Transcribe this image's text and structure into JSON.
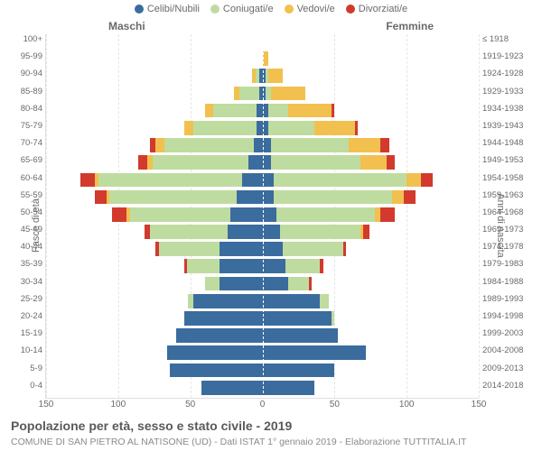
{
  "legend": {
    "items": [
      {
        "label": "Celibi/Nubili",
        "color": "#3b6c9e"
      },
      {
        "label": "Coniugati/e",
        "color": "#bfdca0"
      },
      {
        "label": "Vedovi/e",
        "color": "#f2c04e"
      },
      {
        "label": "Divorziati/e",
        "color": "#d23a2e"
      }
    ]
  },
  "labels": {
    "male": "Maschi",
    "female": "Femmine",
    "y_left": "Fasce di età",
    "y_right": "Anni di nascita"
  },
  "xaxis": {
    "max": 150,
    "ticks": [
      150,
      100,
      50,
      0,
      50,
      100,
      150
    ]
  },
  "colors": {
    "celibi": "#3b6c9e",
    "coniugati": "#bfdca0",
    "vedovi": "#f2c04e",
    "divorziati": "#d23a2e",
    "grid": "#e6e6e6",
    "background": "#ffffff"
  },
  "rows": [
    {
      "age": "100+",
      "birth": "≤ 1918",
      "m": {
        "c": 0,
        "co": 0,
        "v": 0,
        "d": 0
      },
      "f": {
        "c": 0,
        "co": 0,
        "v": 0,
        "d": 0
      }
    },
    {
      "age": "95-99",
      "birth": "1919-1923",
      "m": {
        "c": 0,
        "co": 0,
        "v": 0,
        "d": 0
      },
      "f": {
        "c": 0,
        "co": 0,
        "v": 4,
        "d": 0
      }
    },
    {
      "age": "90-94",
      "birth": "1924-1928",
      "m": {
        "c": 2,
        "co": 3,
        "v": 2,
        "d": 0
      },
      "f": {
        "c": 2,
        "co": 2,
        "v": 10,
        "d": 0
      }
    },
    {
      "age": "85-89",
      "birth": "1929-1933",
      "m": {
        "c": 2,
        "co": 14,
        "v": 4,
        "d": 0
      },
      "f": {
        "c": 2,
        "co": 4,
        "v": 24,
        "d": 0
      }
    },
    {
      "age": "80-84",
      "birth": "1934-1938",
      "m": {
        "c": 4,
        "co": 30,
        "v": 6,
        "d": 0
      },
      "f": {
        "c": 4,
        "co": 14,
        "v": 30,
        "d": 2
      }
    },
    {
      "age": "75-79",
      "birth": "1939-1943",
      "m": {
        "c": 4,
        "co": 44,
        "v": 6,
        "d": 0
      },
      "f": {
        "c": 4,
        "co": 32,
        "v": 28,
        "d": 2
      }
    },
    {
      "age": "70-74",
      "birth": "1944-1948",
      "m": {
        "c": 6,
        "co": 62,
        "v": 6,
        "d": 4
      },
      "f": {
        "c": 6,
        "co": 54,
        "v": 22,
        "d": 6
      }
    },
    {
      "age": "65-69",
      "birth": "1949-1953",
      "m": {
        "c": 10,
        "co": 66,
        "v": 4,
        "d": 6
      },
      "f": {
        "c": 6,
        "co": 62,
        "v": 18,
        "d": 6
      }
    },
    {
      "age": "60-64",
      "birth": "1954-1958",
      "m": {
        "c": 14,
        "co": 100,
        "v": 2,
        "d": 10
      },
      "f": {
        "c": 8,
        "co": 92,
        "v": 10,
        "d": 8
      }
    },
    {
      "age": "55-59",
      "birth": "1959-1963",
      "m": {
        "c": 18,
        "co": 88,
        "v": 2,
        "d": 8
      },
      "f": {
        "c": 8,
        "co": 82,
        "v": 8,
        "d": 8
      }
    },
    {
      "age": "50-54",
      "birth": "1964-1968",
      "m": {
        "c": 22,
        "co": 70,
        "v": 2,
        "d": 10
      },
      "f": {
        "c": 10,
        "co": 68,
        "v": 4,
        "d": 10
      }
    },
    {
      "age": "45-49",
      "birth": "1969-1973",
      "m": {
        "c": 24,
        "co": 54,
        "v": 0,
        "d": 4
      },
      "f": {
        "c": 12,
        "co": 56,
        "v": 2,
        "d": 4
      }
    },
    {
      "age": "40-44",
      "birth": "1974-1978",
      "m": {
        "c": 30,
        "co": 42,
        "v": 0,
        "d": 2
      },
      "f": {
        "c": 14,
        "co": 42,
        "v": 0,
        "d": 2
      }
    },
    {
      "age": "35-39",
      "birth": "1979-1983",
      "m": {
        "c": 30,
        "co": 22,
        "v": 0,
        "d": 2
      },
      "f": {
        "c": 16,
        "co": 24,
        "v": 0,
        "d": 2
      }
    },
    {
      "age": "30-34",
      "birth": "1984-1988",
      "m": {
        "c": 30,
        "co": 10,
        "v": 0,
        "d": 0
      },
      "f": {
        "c": 18,
        "co": 14,
        "v": 0,
        "d": 2
      }
    },
    {
      "age": "25-29",
      "birth": "1989-1993",
      "m": {
        "c": 48,
        "co": 4,
        "v": 0,
        "d": 0
      },
      "f": {
        "c": 40,
        "co": 6,
        "v": 0,
        "d": 0
      }
    },
    {
      "age": "20-24",
      "birth": "1994-1998",
      "m": {
        "c": 54,
        "co": 0,
        "v": 0,
        "d": 0
      },
      "f": {
        "c": 48,
        "co": 2,
        "v": 0,
        "d": 0
      }
    },
    {
      "age": "15-19",
      "birth": "1999-2003",
      "m": {
        "c": 60,
        "co": 0,
        "v": 0,
        "d": 0
      },
      "f": {
        "c": 52,
        "co": 0,
        "v": 0,
        "d": 0
      }
    },
    {
      "age": "10-14",
      "birth": "2004-2008",
      "m": {
        "c": 66,
        "co": 0,
        "v": 0,
        "d": 0
      },
      "f": {
        "c": 72,
        "co": 0,
        "v": 0,
        "d": 0
      }
    },
    {
      "age": "5-9",
      "birth": "2009-2013",
      "m": {
        "c": 64,
        "co": 0,
        "v": 0,
        "d": 0
      },
      "f": {
        "c": 50,
        "co": 0,
        "v": 0,
        "d": 0
      }
    },
    {
      "age": "0-4",
      "birth": "2014-2018",
      "m": {
        "c": 42,
        "co": 0,
        "v": 0,
        "d": 0
      },
      "f": {
        "c": 36,
        "co": 0,
        "v": 0,
        "d": 0
      }
    }
  ],
  "title": "Popolazione per età, sesso e stato civile - 2019",
  "subtitle": "COMUNE DI SAN PIETRO AL NATISONE (UD) - Dati ISTAT 1° gennaio 2019 - Elaborazione TUTTITALIA.IT"
}
